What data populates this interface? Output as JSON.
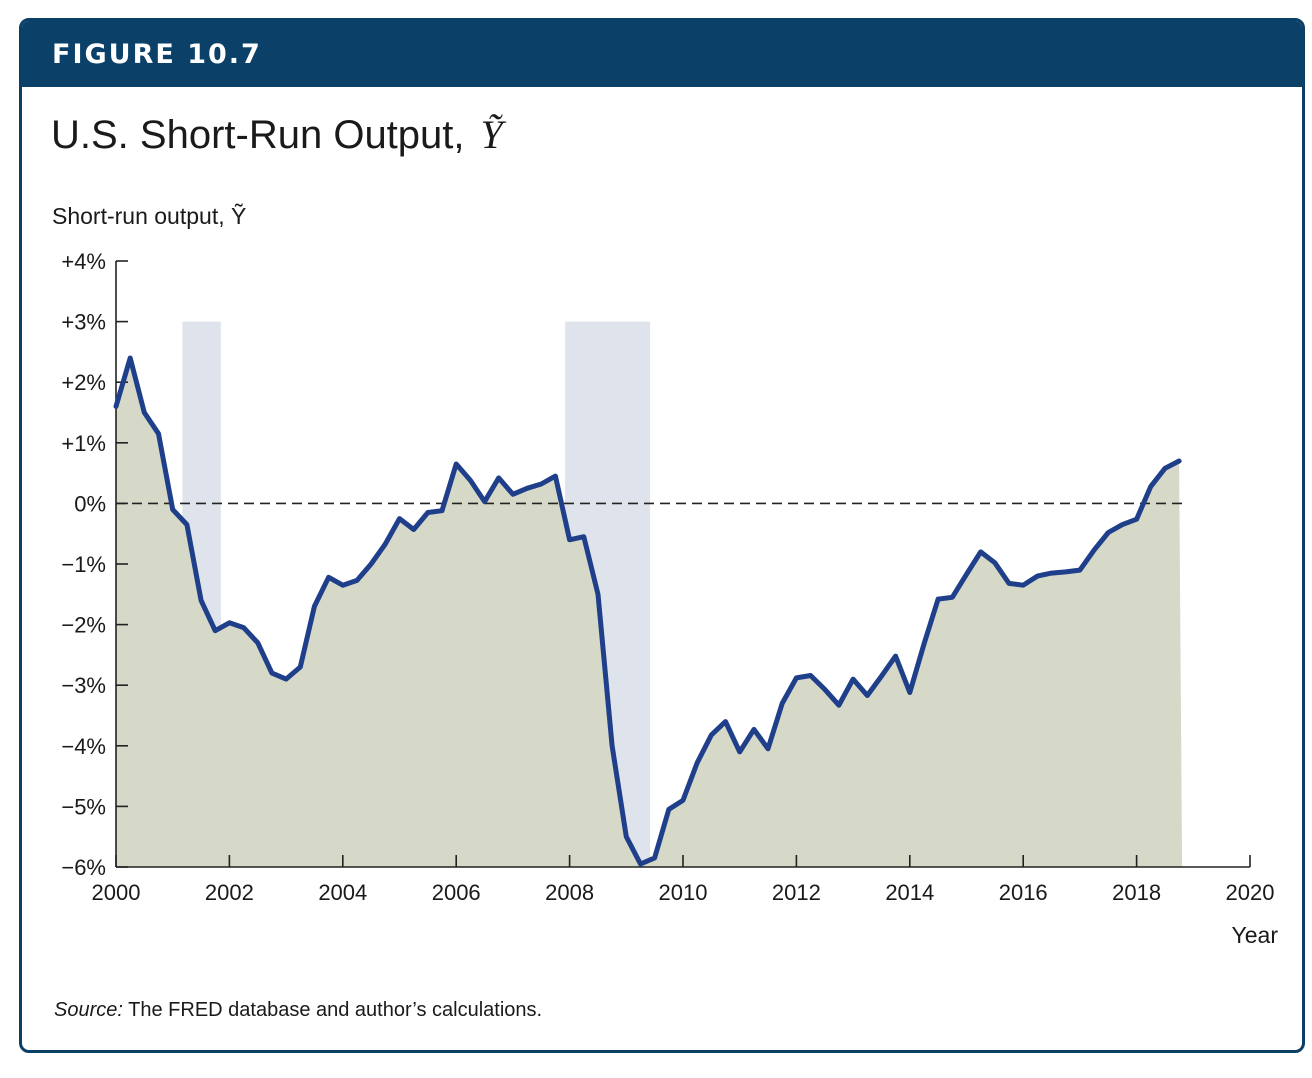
{
  "figure": {
    "label": "FIGURE 10.7",
    "title": "U.S. Short-Run Output,",
    "title_symbol": "Ỹ",
    "source_prefix": "Source:",
    "source_text": " The FRED database and author’s calculations.",
    "colors": {
      "header": "#0b4068",
      "line": "#1f3f8a",
      "area": "#d6d9c7",
      "recession": "#dfe4ec"
    }
  },
  "chart_data": {
    "type": "area",
    "ylabel": "Short-run output, Ỹ",
    "xlabel": "Year",
    "xlim": [
      2000,
      2020
    ],
    "ylim": [
      -6,
      4
    ],
    "x_ticks": [
      2000,
      2002,
      2004,
      2006,
      2008,
      2010,
      2012,
      2014,
      2016,
      2018,
      2020
    ],
    "y_ticks": [
      {
        "value": 4,
        "label": "+4%"
      },
      {
        "value": 3,
        "label": "+3%"
      },
      {
        "value": 2,
        "label": "+2%"
      },
      {
        "value": 1,
        "label": "+1%"
      },
      {
        "value": 0,
        "label": "0%"
      },
      {
        "value": -1,
        "label": "−1%"
      },
      {
        "value": -2,
        "label": "−2%"
      },
      {
        "value": -3,
        "label": "−3%"
      },
      {
        "value": -4,
        "label": "−4%"
      },
      {
        "value": -5,
        "label": "−5%"
      },
      {
        "value": -6,
        "label": "−6%"
      }
    ],
    "zero_line": {
      "value": 0,
      "style": "dashed"
    },
    "recessions": [
      {
        "start": 2001.17,
        "end": 2001.85,
        "top": 3
      },
      {
        "start": 2007.92,
        "end": 2009.42,
        "top": 3
      }
    ],
    "series": [
      {
        "x": [
          2000.0,
          2000.25,
          2000.5,
          2000.75,
          2001.0,
          2001.25,
          2001.5,
          2001.75,
          2002.0,
          2002.25,
          2002.5,
          2002.75,
          2003.0,
          2003.25,
          2003.5,
          2003.75,
          2004.0,
          2004.25,
          2004.5,
          2004.75,
          2005.0,
          2005.25,
          2005.5,
          2005.75,
          2006.0,
          2006.25,
          2006.5,
          2006.75,
          2007.0,
          2007.25,
          2007.5,
          2007.75,
          2008.0,
          2008.25,
          2008.5,
          2008.75,
          2009.0,
          2009.25,
          2009.5,
          2009.75,
          2010.0,
          2010.25,
          2010.5,
          2010.75,
          2011.0,
          2011.25,
          2011.5,
          2011.75,
          2012.0,
          2012.25,
          2012.5,
          2012.75,
          2013.0,
          2013.25,
          2013.5,
          2013.75,
          2014.0,
          2014.25,
          2014.5,
          2014.75,
          2015.0,
          2015.25,
          2015.5,
          2015.75,
          2016.0,
          2016.25,
          2016.5,
          2016.75,
          2017.0,
          2017.25,
          2017.5,
          2017.75,
          2018.0,
          2018.25,
          2018.5,
          2018.75
        ],
        "values": [
          1.6,
          2.4,
          1.5,
          1.15,
          -0.1,
          -0.35,
          -1.6,
          -2.1,
          -1.97,
          -2.05,
          -2.3,
          -2.8,
          -2.9,
          -2.7,
          -1.7,
          -1.22,
          -1.35,
          -1.27,
          -1.0,
          -0.67,
          -0.25,
          -0.43,
          -0.15,
          -0.12,
          0.65,
          0.38,
          0.03,
          0.42,
          0.15,
          0.25,
          0.32,
          0.45,
          -0.6,
          -0.55,
          -1.5,
          -4.0,
          -5.5,
          -5.95,
          -5.85,
          -5.05,
          -4.9,
          -4.28,
          -3.82,
          -3.6,
          -4.1,
          -3.73,
          -4.05,
          -3.3,
          -2.88,
          -2.84,
          -3.07,
          -3.33,
          -2.9,
          -3.17,
          -2.85,
          -2.52,
          -3.12,
          -2.32,
          -1.58,
          -1.55,
          -1.17,
          -0.8,
          -0.98,
          -1.32,
          -1.35,
          -1.2,
          -1.15,
          -1.13,
          -1.1,
          -0.77,
          -0.48,
          -0.35,
          -0.26,
          0.28,
          0.58,
          0.7
        ]
      }
    ]
  }
}
